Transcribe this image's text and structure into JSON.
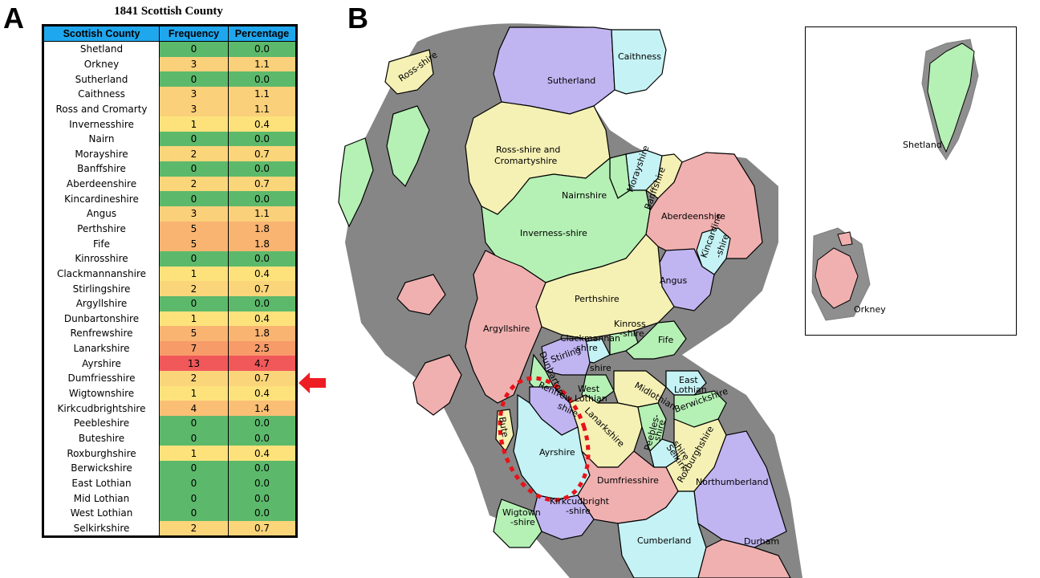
{
  "panels": {
    "a": "A",
    "b": "B"
  },
  "table": {
    "title": "1841 Scottish County",
    "headers": [
      "Scottish County",
      "Frequency",
      "Percentage"
    ],
    "rows": [
      {
        "county": "Shetland",
        "frequency": "0",
        "percentage": "0.0"
      },
      {
        "county": "Orkney",
        "frequency": "3",
        "percentage": "1.1"
      },
      {
        "county": "Sutherland",
        "frequency": "0",
        "percentage": "0.0"
      },
      {
        "county": "Caithness",
        "frequency": "3",
        "percentage": "1.1"
      },
      {
        "county": "Ross and Cromarty",
        "frequency": "3",
        "percentage": "1.1"
      },
      {
        "county": "Invernesshire",
        "frequency": "1",
        "percentage": "0.4"
      },
      {
        "county": "Nairn",
        "frequency": "0",
        "percentage": "0.0"
      },
      {
        "county": "Morayshire",
        "frequency": "2",
        "percentage": "0.7"
      },
      {
        "county": "Banffshire",
        "frequency": "0",
        "percentage": "0.0"
      },
      {
        "county": "Aberdeenshire",
        "frequency": "2",
        "percentage": "0.7"
      },
      {
        "county": "Kincardineshire",
        "frequency": "0",
        "percentage": "0.0"
      },
      {
        "county": "Angus",
        "frequency": "3",
        "percentage": "1.1"
      },
      {
        "county": "Perthshire",
        "frequency": "5",
        "percentage": "1.8"
      },
      {
        "county": "Fife",
        "frequency": "5",
        "percentage": "1.8"
      },
      {
        "county": "Kinrosshire",
        "frequency": "0",
        "percentage": "0.0"
      },
      {
        "county": "Clackmannanshire",
        "frequency": "1",
        "percentage": "0.4"
      },
      {
        "county": "Stirlingshire",
        "frequency": "2",
        "percentage": "0.7"
      },
      {
        "county": "Argyllshire",
        "frequency": "0",
        "percentage": "0.0"
      },
      {
        "county": "Dunbartonshire",
        "frequency": "1",
        "percentage": "0.4"
      },
      {
        "county": "Renfrewshire",
        "frequency": "5",
        "percentage": "1.8"
      },
      {
        "county": "Lanarkshire",
        "frequency": "7",
        "percentage": "2.5"
      },
      {
        "county": "Ayrshire",
        "frequency": "13",
        "percentage": "4.7"
      },
      {
        "county": "Dumfriesshire",
        "frequency": "2",
        "percentage": "0.7"
      },
      {
        "county": "Wigtownshire",
        "frequency": "1",
        "percentage": "0.4"
      },
      {
        "county": "Kirkcudbrightshire",
        "frequency": "4",
        "percentage": "1.4"
      },
      {
        "county": "Peebleshire",
        "frequency": "0",
        "percentage": "0.0"
      },
      {
        "county": "Buteshire",
        "frequency": "0",
        "percentage": "0.0"
      },
      {
        "county": "Roxburghshire",
        "frequency": "1",
        "percentage": "0.4"
      },
      {
        "county": "Berwickshire",
        "frequency": "0",
        "percentage": "0.0"
      },
      {
        "county": "East Lothian",
        "frequency": "0",
        "percentage": "0.0"
      },
      {
        "county": "Mid Lothian",
        "frequency": "0",
        "percentage": "0.0"
      },
      {
        "county": "West Lothian",
        "frequency": "0",
        "percentage": "0.0"
      },
      {
        "county": "Selkirkshire",
        "frequency": "2",
        "percentage": "0.7"
      }
    ],
    "heat_colors": {
      "0": "#5cb96b",
      "1": "#fde27c",
      "2": "#fbd57a",
      "3": "#fbd07a",
      "4": "#fabf75",
      "5": "#f9b472",
      "7": "#f79b69",
      "13": "#f0585a"
    }
  },
  "arrow": {
    "color": "#ee1d23",
    "points_to": "Ayrshire"
  },
  "map": {
    "labels": [
      "Ross-shire",
      "Sutherland",
      "Caithness",
      "Ross-shire and",
      "Cromartyshire",
      "Morayshire",
      "Banffshire",
      "Nairnshire",
      "Aberdeenshire",
      "Inverness-shire",
      "Kincardine",
      "-shire",
      "Angus",
      "Perthshire",
      "Kinross",
      "-shire",
      "Argyllshire",
      "Clackmannan",
      "-shire",
      "Fife",
      "Stirling",
      "shire",
      "Dunbarton",
      "East",
      "Lothian",
      "West",
      "Lothian",
      "Midlothian",
      "Berwickshire",
      "Renfrew",
      "shire",
      "Lanarkshire",
      "Peebles-",
      "shire",
      "Selkirk",
      "shire",
      "Roxburghshire",
      "Bute",
      "Ayrshire",
      "Dumfriesshire",
      "Northumberland",
      "Kirkcudbright",
      "-shire",
      "Wigtown",
      "-shire",
      "Cumberland",
      "Durham"
    ],
    "inset_labels": [
      "Shetland",
      "Orkney"
    ],
    "colors": {
      "green": "#b5f0b5",
      "yellow": "#f5f0b4",
      "purple": "#c0b5f0",
      "pink": "#f0b0b0",
      "cyan": "#c5f2f5",
      "highlight": "#e8121a"
    }
  }
}
